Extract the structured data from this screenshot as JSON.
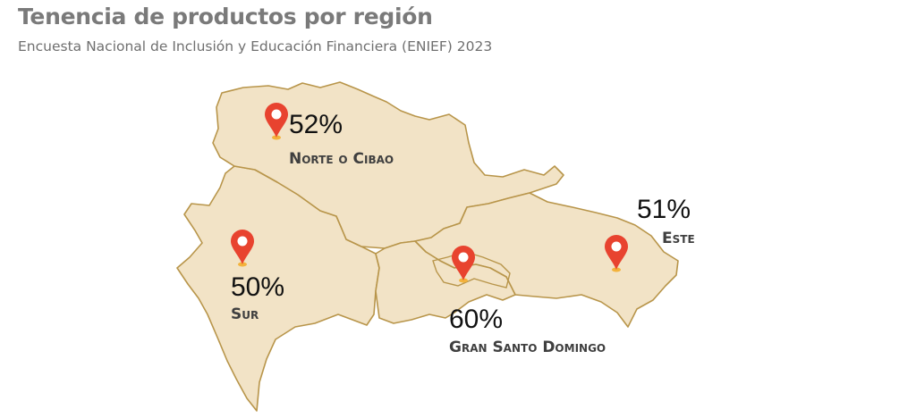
{
  "header": {
    "title": "Tenencia de productos por región",
    "subtitle": "Encuesta Nacional de Inclusión y Educación Financiera (ENIEF) 2023"
  },
  "colors": {
    "land": "#f2e3c6",
    "border": "#b8954a",
    "marker": "#e8432f",
    "marker_base": "#f3b33c"
  },
  "regions": [
    {
      "id": "norte",
      "name": "Norte o Cibao",
      "value": "52%"
    },
    {
      "id": "sur",
      "name": "Sur",
      "value": "50%"
    },
    {
      "id": "gsd",
      "name": "Gran Santo Domingo",
      "value": "60%"
    },
    {
      "id": "este",
      "name": "Este",
      "value": "51%"
    }
  ],
  "icons": {
    "marker": "map-pin-icon"
  }
}
